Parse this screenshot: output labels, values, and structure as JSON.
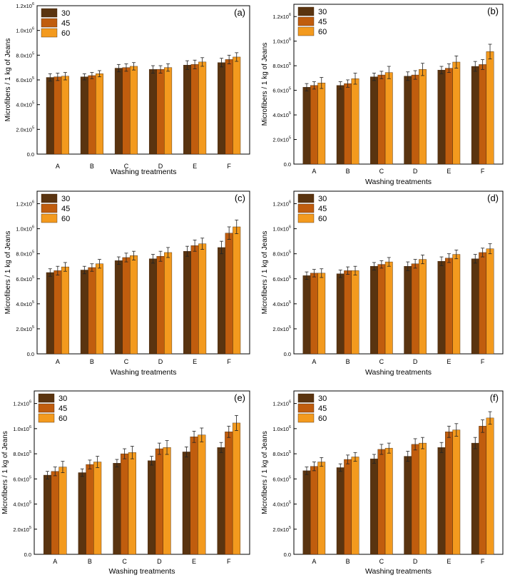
{
  "colors": {
    "s30": "#5a3410",
    "s45": "#c05d0e",
    "s60": "#f39a1e",
    "axis": "#000000",
    "err": "#222222"
  },
  "chart_data": [
    {
      "type": "bar",
      "panel_label": "(a)",
      "categories": [
        "A",
        "B",
        "C",
        "D",
        "E",
        "F"
      ],
      "xlabel": "Washing treatments",
      "ylabel": "Microfibers / 1 kg of Jeans",
      "ylim": [
        0,
        1200000
      ],
      "yticks": [
        {
          "v": 0,
          "m": "0.0",
          "e": ""
        },
        {
          "v": 200000,
          "m": "2.0x10",
          "e": "5"
        },
        {
          "v": 400000,
          "m": "4.0x10",
          "e": "5"
        },
        {
          "v": 600000,
          "m": "6.0x10",
          "e": "5"
        },
        {
          "v": 800000,
          "m": "8.0x10",
          "e": "5"
        },
        {
          "v": 1000000,
          "m": "1.0x10",
          "e": "6"
        },
        {
          "v": 1200000,
          "m": "1.2x10",
          "e": "6"
        }
      ],
      "series": [
        {
          "name": "30",
          "values": [
            620000,
            625000,
            695000,
            685000,
            720000,
            740000
          ],
          "errors": [
            30000,
            25000,
            30000,
            30000,
            35000,
            35000
          ]
        },
        {
          "name": "45",
          "values": [
            625000,
            635000,
            700000,
            685000,
            725000,
            765000
          ],
          "errors": [
            30000,
            25000,
            30000,
            30000,
            35000,
            35000
          ]
        },
        {
          "name": "60",
          "values": [
            630000,
            650000,
            710000,
            700000,
            745000,
            785000
          ],
          "errors": [
            30000,
            25000,
            30000,
            30000,
            35000,
            35000
          ]
        }
      ]
    },
    {
      "type": "bar",
      "panel_label": "(b)",
      "categories": [
        "A",
        "B",
        "C",
        "D",
        "E",
        "F"
      ],
      "xlabel": "Washing treatments",
      "ylabel": "Microfibers / 1 kg of Jeans",
      "ylim": [
        0,
        1300000
      ],
      "yticks": [
        {
          "v": 0,
          "m": "0.0",
          "e": ""
        },
        {
          "v": 200000,
          "m": "2.0x10",
          "e": "5"
        },
        {
          "v": 400000,
          "m": "4.0x10",
          "e": "5"
        },
        {
          "v": 600000,
          "m": "6.0x10",
          "e": "5"
        },
        {
          "v": 800000,
          "m": "8.0x10",
          "e": "5"
        },
        {
          "v": 1000000,
          "m": "1.0x10",
          "e": "6"
        },
        {
          "v": 1200000,
          "m": "1.2x10",
          "e": "6"
        }
      ],
      "series": [
        {
          "name": "30",
          "values": [
            625000,
            640000,
            710000,
            715000,
            765000,
            795000
          ],
          "errors": [
            30000,
            30000,
            30000,
            35000,
            30000,
            40000
          ]
        },
        {
          "name": "45",
          "values": [
            640000,
            655000,
            725000,
            725000,
            780000,
            810000
          ],
          "errors": [
            30000,
            30000,
            30000,
            35000,
            35000,
            40000
          ]
        },
        {
          "name": "60",
          "values": [
            660000,
            695000,
            745000,
            770000,
            830000,
            915000
          ],
          "errors": [
            45000,
            45000,
            50000,
            50000,
            50000,
            60000
          ]
        }
      ]
    },
    {
      "type": "bar",
      "panel_label": "(c)",
      "categories": [
        "A",
        "B",
        "C",
        "D",
        "E",
        "F"
      ],
      "xlabel": "Washing treatments",
      "ylabel": "Microfibers / 1 kg of Jeans",
      "ylim": [
        0,
        1300000
      ],
      "yticks": [
        {
          "v": 0,
          "m": "0.0",
          "e": ""
        },
        {
          "v": 200000,
          "m": "2.0x10",
          "e": "5"
        },
        {
          "v": 400000,
          "m": "4.0x10",
          "e": "5"
        },
        {
          "v": 600000,
          "m": "6.0x10",
          "e": "5"
        },
        {
          "v": 800000,
          "m": "8.0x10",
          "e": "5"
        },
        {
          "v": 1000000,
          "m": "1.0x10",
          "e": "6"
        },
        {
          "v": 1200000,
          "m": "1.2x10",
          "e": "6"
        }
      ],
      "series": [
        {
          "name": "30",
          "values": [
            650000,
            670000,
            745000,
            760000,
            820000,
            850000
          ],
          "errors": [
            30000,
            30000,
            30000,
            35000,
            40000,
            50000
          ]
        },
        {
          "name": "45",
          "values": [
            665000,
            690000,
            770000,
            780000,
            865000,
            965000
          ],
          "errors": [
            35000,
            30000,
            35000,
            40000,
            45000,
            50000
          ]
        },
        {
          "name": "60",
          "values": [
            695000,
            720000,
            785000,
            810000,
            880000,
            1015000
          ],
          "errors": [
            35000,
            35000,
            35000,
            40000,
            45000,
            55000
          ]
        }
      ]
    },
    {
      "type": "bar",
      "panel_label": "(d)",
      "categories": [
        "A",
        "B",
        "C",
        "D",
        "E",
        "F"
      ],
      "xlabel": "Washing treatments",
      "ylabel": "Microfibers / 1 kg of Jeans",
      "ylim": [
        0,
        1300000
      ],
      "yticks": [
        {
          "v": 0,
          "m": "0.0",
          "e": ""
        },
        {
          "v": 200000,
          "m": "2.0x10",
          "e": "5"
        },
        {
          "v": 400000,
          "m": "4.0x10",
          "e": "5"
        },
        {
          "v": 600000,
          "m": "6.0x10",
          "e": "5"
        },
        {
          "v": 800000,
          "m": "8.0x10",
          "e": "5"
        },
        {
          "v": 1000000,
          "m": "1.0x10",
          "e": "6"
        },
        {
          "v": 1200000,
          "m": "1.2x10",
          "e": "6"
        }
      ],
      "series": [
        {
          "name": "30",
          "values": [
            625000,
            640000,
            700000,
            700000,
            740000,
            760000
          ],
          "errors": [
            30000,
            30000,
            30000,
            35000,
            35000,
            35000
          ]
        },
        {
          "name": "45",
          "values": [
            645000,
            665000,
            715000,
            720000,
            765000,
            810000
          ],
          "errors": [
            30000,
            30000,
            30000,
            35000,
            35000,
            35000
          ]
        },
        {
          "name": "60",
          "values": [
            645000,
            665000,
            735000,
            755000,
            795000,
            840000
          ],
          "errors": [
            35000,
            35000,
            35000,
            35000,
            35000,
            40000
          ]
        }
      ]
    },
    {
      "type": "bar",
      "panel_label": "(e)",
      "categories": [
        "A",
        "B",
        "C",
        "D",
        "E",
        "F"
      ],
      "xlabel": "Washing treatments",
      "ylabel": "Microfibers / 1 kg of Jeans",
      "ylim": [
        0,
        1300000
      ],
      "yticks": [
        {
          "v": 0,
          "m": "0.0",
          "e": ""
        },
        {
          "v": 200000,
          "m": "2.0x10",
          "e": "5"
        },
        {
          "v": 400000,
          "m": "4.0x10",
          "e": "5"
        },
        {
          "v": 600000,
          "m": "6.0x10",
          "e": "5"
        },
        {
          "v": 800000,
          "m": "8.0x10",
          "e": "5"
        },
        {
          "v": 1000000,
          "m": "1.0x10",
          "e": "6"
        },
        {
          "v": 1200000,
          "m": "1.2x10",
          "e": "6"
        }
      ],
      "series": [
        {
          "name": "30",
          "values": [
            630000,
            650000,
            725000,
            745000,
            815000,
            850000
          ],
          "errors": [
            30000,
            30000,
            30000,
            35000,
            40000,
            40000
          ]
        },
        {
          "name": "45",
          "values": [
            660000,
            715000,
            800000,
            840000,
            935000,
            975000
          ],
          "errors": [
            35000,
            35000,
            40000,
            45000,
            45000,
            45000
          ]
        },
        {
          "name": "60",
          "values": [
            695000,
            735000,
            810000,
            850000,
            950000,
            1045000
          ],
          "errors": [
            45000,
            45000,
            50000,
            55000,
            55000,
            60000
          ]
        }
      ]
    },
    {
      "type": "bar",
      "panel_label": "(f)",
      "categories": [
        "A",
        "B",
        "C",
        "D",
        "E",
        "F"
      ],
      "xlabel": "Washing treatments",
      "ylabel": "Microfibers / 1 kg of Jeans",
      "ylim": [
        0,
        1300000
      ],
      "yticks": [
        {
          "v": 0,
          "m": "0.0",
          "e": ""
        },
        {
          "v": 200000,
          "m": "2.0x10",
          "e": "5"
        },
        {
          "v": 400000,
          "m": "4.0x10",
          "e": "5"
        },
        {
          "v": 600000,
          "m": "6.0x10",
          "e": "5"
        },
        {
          "v": 800000,
          "m": "8.0x10",
          "e": "5"
        },
        {
          "v": 1000000,
          "m": "1.0x10",
          "e": "6"
        },
        {
          "v": 1200000,
          "m": "1.2x10",
          "e": "6"
        }
      ],
      "series": [
        {
          "name": "30",
          "values": [
            665000,
            690000,
            760000,
            780000,
            850000,
            885000
          ],
          "errors": [
            30000,
            30000,
            35000,
            40000,
            40000,
            45000
          ]
        },
        {
          "name": "45",
          "values": [
            700000,
            755000,
            835000,
            875000,
            975000,
            1020000
          ],
          "errors": [
            35000,
            35000,
            40000,
            45000,
            45000,
            50000
          ]
        },
        {
          "name": "60",
          "values": [
            735000,
            775000,
            845000,
            885000,
            990000,
            1085000
          ],
          "errors": [
            35000,
            35000,
            40000,
            45000,
            50000,
            50000
          ]
        }
      ]
    }
  ]
}
